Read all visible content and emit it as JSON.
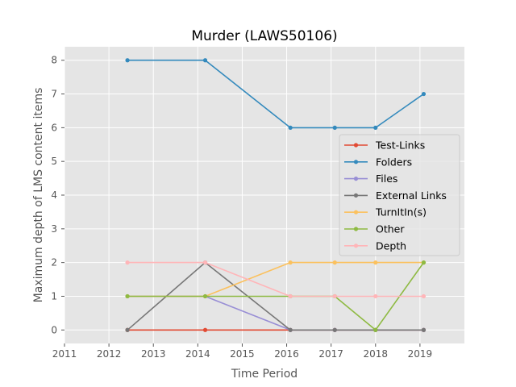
{
  "chart_data": {
    "type": "line",
    "title": "Murder (LAWS50106)",
    "xlabel": "Time Period",
    "ylabel": "Maximum depth of LMS content items",
    "xlim": [
      "2011-01-01",
      "2020-01-01"
    ],
    "ylim": [
      -0.4,
      8.4
    ],
    "x_ticks": [
      "2011",
      "2012",
      "2013",
      "2014",
      "2015",
      "2016",
      "2017",
      "2018",
      "2019"
    ],
    "y_ticks": [
      "0",
      "1",
      "2",
      "3",
      "4",
      "5",
      "6",
      "7",
      "8"
    ],
    "x": [
      "2012-06",
      "2014-03",
      "2016-02",
      "2017-02",
      "2018-01",
      "2019-02"
    ],
    "series": [
      {
        "name": "Test-Links",
        "color": "#e24a33",
        "values": [
          0,
          0,
          0,
          0,
          0,
          0
        ]
      },
      {
        "name": "Folders",
        "color": "#348abd",
        "values": [
          8,
          8,
          6,
          6,
          6,
          7
        ]
      },
      {
        "name": "Files",
        "color": "#988ed5",
        "values": [
          1,
          1,
          0,
          0,
          0,
          0
        ]
      },
      {
        "name": "External Links",
        "color": "#777777",
        "values": [
          0,
          2,
          0,
          0,
          0,
          0
        ]
      },
      {
        "name": "TurnItIn(s)",
        "color": "#fbc15e",
        "values": [
          1,
          1,
          2,
          2,
          2,
          2
        ]
      },
      {
        "name": "Other",
        "color": "#8eba42",
        "values": [
          1,
          1,
          1,
          1,
          0,
          2
        ]
      },
      {
        "name": "Depth",
        "color": "#ffb5b8",
        "values": [
          2,
          2,
          1,
          1,
          1,
          1
        ]
      }
    ],
    "grid": true,
    "legend_position": "center-right",
    "background_color": "#e5e5e5"
  }
}
